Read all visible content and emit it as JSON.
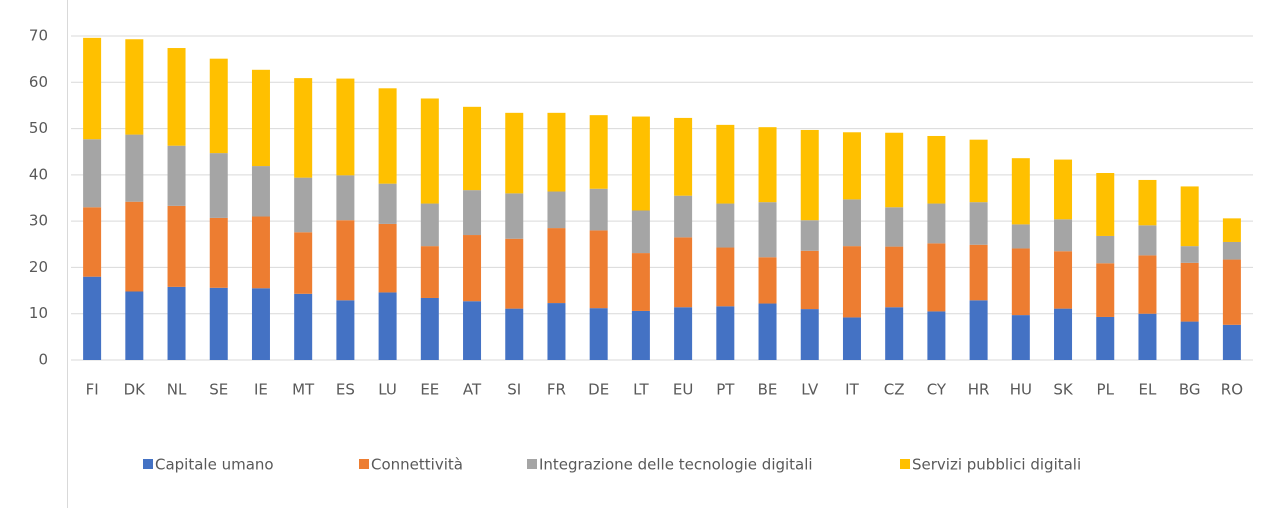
{
  "chart_data": {
    "type": "stacked_bar",
    "categories": [
      "FI",
      "DK",
      "NL",
      "SE",
      "IE",
      "MT",
      "ES",
      "LU",
      "EE",
      "AT",
      "SI",
      "FR",
      "DE",
      "LT",
      "EU",
      "PT",
      "BE",
      "LV",
      "IT",
      "CZ",
      "CY",
      "HR",
      "HU",
      "SK",
      "PL",
      "EL",
      "BG",
      "RO"
    ],
    "series": [
      {
        "name": "Capitale umano",
        "color": "#4472c4",
        "values": [
          18,
          14.8,
          15.8,
          15.6,
          15.5,
          14.3,
          12.9,
          14.6,
          13.4,
          12.7,
          11.1,
          12.3,
          11.2,
          10.6,
          11.4,
          11.6,
          12.2,
          11,
          9.2,
          11.4,
          10.5,
          12.9,
          9.7,
          11.1,
          9.3,
          10,
          8.3,
          7.6
        ]
      },
      {
        "name": "Connettività",
        "color": "#ed7d31",
        "values": [
          15,
          19.4,
          17.5,
          15.1,
          15.5,
          13.3,
          17.3,
          14.8,
          11.2,
          14.3,
          15.1,
          16.2,
          16.8,
          12.5,
          15.1,
          12.7,
          10,
          12.6,
          15.4,
          13.1,
          14.7,
          12,
          14.4,
          12.4,
          11.6,
          12.6,
          12.7,
          14.1
        ]
      },
      {
        "name": "Integrazione delle tecnologie digitali",
        "color": "#a5a5a5",
        "values": [
          14.7,
          14.5,
          13,
          14,
          10.9,
          11.8,
          9.7,
          8.7,
          9.2,
          9.7,
          9.8,
          7.9,
          9,
          9.2,
          9,
          9.5,
          11.9,
          6.6,
          10.1,
          8.5,
          8.6,
          9.2,
          5.2,
          6.9,
          5.9,
          6.5,
          3.6,
          3.8
        ]
      },
      {
        "name": "Servizi pubblici digitali",
        "color": "#ffc000",
        "values": [
          21.9,
          20.6,
          21.1,
          20.4,
          20.8,
          21.5,
          20.9,
          20.6,
          22.7,
          18,
          17.4,
          17,
          15.9,
          20.3,
          16.8,
          17,
          16.2,
          19.5,
          14.5,
          16.1,
          14.6,
          13.5,
          14.3,
          12.9,
          13.6,
          9.8,
          12.9,
          5.1
        ]
      }
    ],
    "ylim": [
      0,
      70
    ],
    "yticks": [
      0,
      10,
      20,
      30,
      40,
      50,
      60,
      70
    ],
    "grid": true,
    "legend": "bottom"
  }
}
